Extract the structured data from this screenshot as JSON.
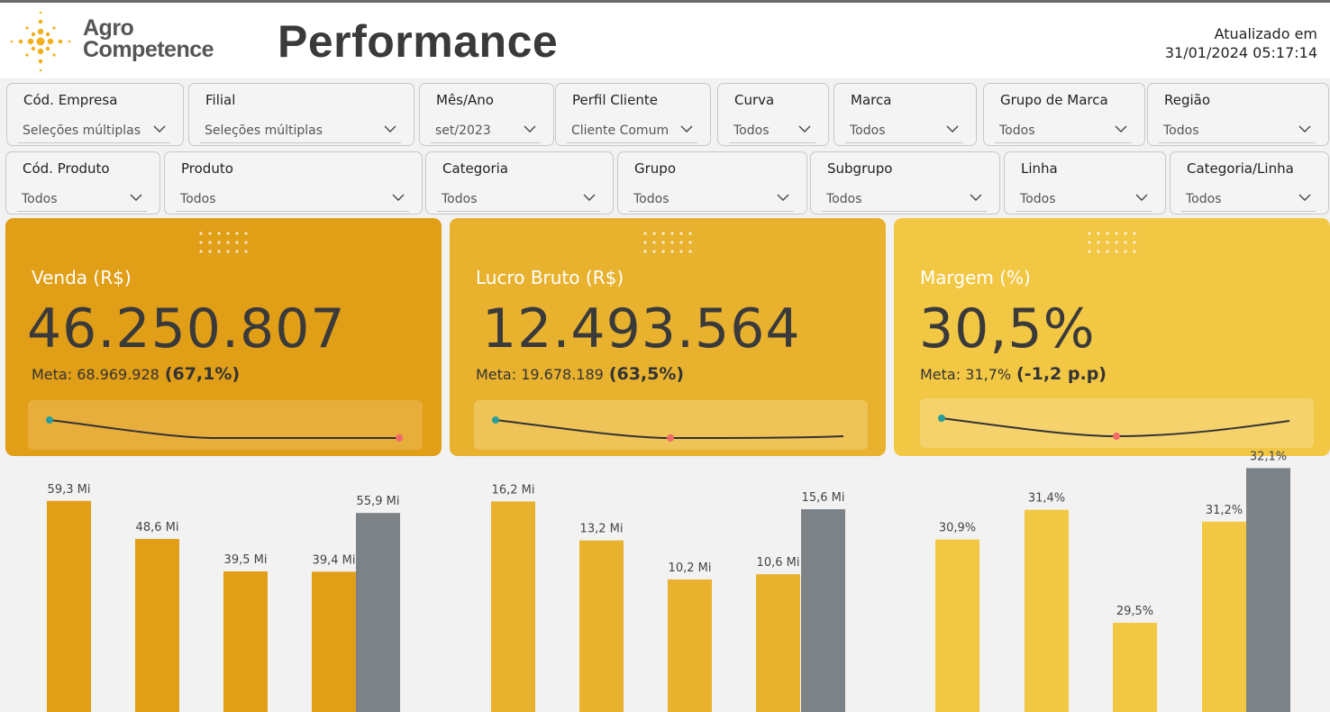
{
  "header": {
    "logo_line1": "Agro",
    "logo_line2": "Competence",
    "title": "Performance",
    "updated_label": "Atualizado em",
    "updated_value": "31/01/2024 05:17:14"
  },
  "filters": [
    {
      "label": "Cód. Empresa",
      "value": "Seleções múltiplas"
    },
    {
      "label": "Filial",
      "value": "Seleções múltiplas"
    },
    {
      "label": "Mês/Ano",
      "value": "set/2023"
    },
    {
      "label": "Perfil Cliente",
      "value": "Cliente Comum"
    },
    {
      "label": "Curva",
      "value": "Todos"
    },
    {
      "label": "Marca",
      "value": "Todos"
    },
    {
      "label": "Grupo de Marca",
      "value": "Todos"
    },
    {
      "label": "Região",
      "value": "Todos"
    },
    {
      "label": "Cód. Produto",
      "value": "Todos"
    },
    {
      "label": "Produto",
      "value": "Todos"
    },
    {
      "label": "Categoria",
      "value": "Todos"
    },
    {
      "label": "Grupo",
      "value": "Todos"
    },
    {
      "label": "Subgrupo",
      "value": "Todos"
    },
    {
      "label": "Linha",
      "value": "Todos"
    },
    {
      "label": "Categoria/Linha",
      "value": "Todos"
    }
  ],
  "kpis": [
    {
      "label": "Venda (R$)",
      "value": "46.250.807",
      "meta_label": "Meta: 68.969.928",
      "meta_pct": "(67,1%)",
      "color": "#e19e17",
      "spark_bg": "#e8ae3c"
    },
    {
      "label": "Lucro Bruto (R$)",
      "value": "12.493.564",
      "meta_label": "Meta: 19.678.189",
      "meta_pct": "(63,5%)",
      "color": "#e8b22f",
      "spark_bg": "#eec458"
    },
    {
      "label": "Margem (%)",
      "value": "30,5%",
      "meta_label": "Meta: 31,7%",
      "meta_pct": "(-1,2 p.p)",
      "color": "#f2c744",
      "spark_bg": "#f5d26b"
    }
  ],
  "chart_data": [
    {
      "type": "bar",
      "series": [
        {
          "name": "",
          "values": [
            59.3,
            48.6,
            39.5,
            39.4
          ],
          "labels": [
            "59,3 Mi",
            "48,6 Mi",
            "39,5 Mi",
            "39,4 Mi"
          ],
          "color": "#e19e17"
        },
        {
          "name": "",
          "values": [
            55.9
          ],
          "labels": [
            "55,9 Mi"
          ],
          "color": "#7d8287"
        }
      ]
    },
    {
      "type": "bar",
      "series": [
        {
          "name": "",
          "values": [
            16.2,
            13.2,
            10.2,
            10.6
          ],
          "labels": [
            "16,2 Mi",
            "13,2 Mi",
            "10,2 Mi",
            "10,6 Mi"
          ],
          "color": "#e8b22f"
        },
        {
          "name": "",
          "values": [
            15.6
          ],
          "labels": [
            "15,6 Mi"
          ],
          "color": "#7d8287"
        }
      ]
    },
    {
      "type": "bar",
      "series": [
        {
          "name": "",
          "values": [
            30.9,
            31.4,
            29.5,
            31.2
          ],
          "labels": [
            "30,9%",
            "31,4%",
            "29,5%",
            "31,2%"
          ],
          "color": "#f2c744"
        },
        {
          "name": "",
          "values": [
            32.1
          ],
          "labels": [
            "32,1%"
          ],
          "color": "#7d8287"
        }
      ]
    }
  ]
}
